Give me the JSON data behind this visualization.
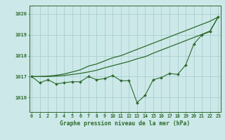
{
  "title": "Graphe pression niveau de la mer (hPa)",
  "bg_color": "#cce8e8",
  "grid_color": "#aacfcf",
  "line_color": "#2d6a2d",
  "ylim": [
    1015.3,
    1020.4
  ],
  "yticks": [
    1016,
    1017,
    1018,
    1019,
    1020
  ],
  "series1": [
    1017.0,
    1016.7,
    1016.85,
    1016.65,
    1016.7,
    1016.75,
    1016.75,
    1017.0,
    1016.85,
    1016.9,
    1017.05,
    1016.8,
    1016.8,
    1015.75,
    1016.1,
    1016.85,
    1016.95,
    1017.15,
    1017.1,
    1017.55,
    1018.55,
    1019.0,
    1019.15,
    1019.85
  ],
  "series2": [
    1017.0,
    1017.0,
    1017.0,
    1017.02,
    1017.05,
    1017.1,
    1017.15,
    1017.22,
    1017.3,
    1017.42,
    1017.52,
    1017.62,
    1017.72,
    1017.85,
    1017.95,
    1018.12,
    1018.27,
    1018.42,
    1018.57,
    1018.72,
    1018.87,
    1019.02,
    1019.18,
    1019.85
  ],
  "series3": [
    1017.0,
    1017.0,
    1017.02,
    1017.06,
    1017.12,
    1017.22,
    1017.32,
    1017.5,
    1017.6,
    1017.75,
    1017.9,
    1018.0,
    1018.15,
    1018.3,
    1018.45,
    1018.6,
    1018.75,
    1018.9,
    1019.05,
    1019.2,
    1019.35,
    1019.5,
    1019.65,
    1019.85
  ]
}
